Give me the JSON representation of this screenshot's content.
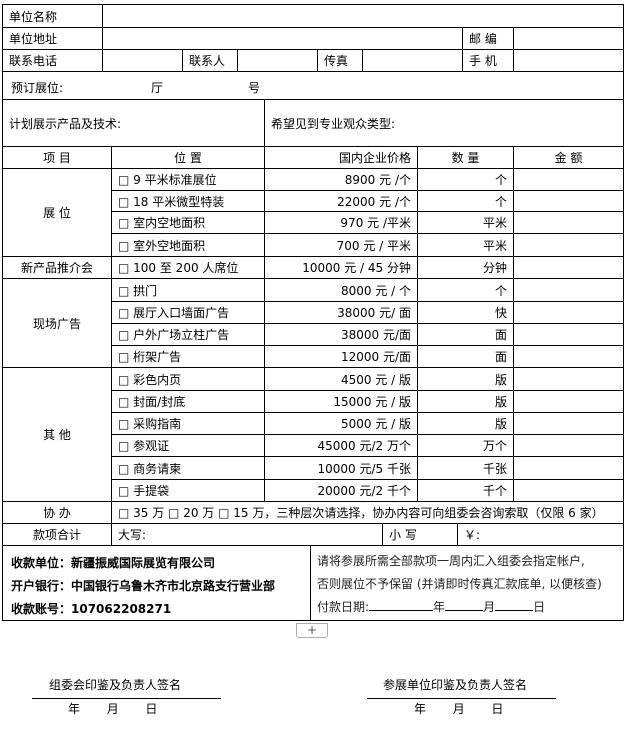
{
  "top": {
    "unit_name": "单位名称",
    "unit_address": "单位地址",
    "postcode": "邮 编",
    "phone": "联系电话",
    "contact": "联系人",
    "fax": "传真",
    "mobile": "手 机",
    "booth": "预订展位:",
    "hall": "厅",
    "number": "号",
    "products": "计划展示产品及技术:",
    "audience": "希望见到专业观众类型:"
  },
  "header": {
    "item": "项 目",
    "position": "位 置",
    "price": "国内企业价格",
    "quantity": "数 量",
    "amount": "金 额"
  },
  "groups": {
    "booth": "展 位",
    "launch": "新产品推介会",
    "ads": "现场广告",
    "other": "其 他",
    "sponsor": "协 办",
    "total": "款项合计"
  },
  "rows": [
    {
      "position": "□  9 平米标准展位",
      "price": "8900 元 /个",
      "unit": "个"
    },
    {
      "position": "□  18 平米微型特装",
      "price": "22000 元 /个",
      "unit": "个"
    },
    {
      "position": "□  室内空地面积",
      "price": "970 元 /平米",
      "unit": "平米"
    },
    {
      "position": "□  室外空地面积",
      "price": "700 元 / 平米",
      "unit": "平米"
    },
    {
      "position": "□ 100 至 200 人席位",
      "price": "10000 元 / 45 分钟",
      "unit": "分钟"
    },
    {
      "position": "□  拱门",
      "price": "8000 元 / 个",
      "unit": "个"
    },
    {
      "position": "□  展厅入口墙面广告",
      "price": "38000 元/ 面",
      "unit": "快"
    },
    {
      "position": "□  户外广场立柱广告",
      "price": "38000 元/面",
      "unit": "面"
    },
    {
      "position": "□  桁架广告",
      "price": "12000 元/面",
      "unit": "面"
    },
    {
      "position": "□  彩色内页",
      "price": "4500 元 / 版",
      "unit": "版"
    },
    {
      "position": "□  封面/封底",
      "price": "15000 元 / 版",
      "unit": "版"
    },
    {
      "position": "□  采购指南",
      "price": "5000 元 / 版",
      "unit": "版"
    },
    {
      "position": "□  参观证",
      "price": "45000 元/2 万个",
      "unit": "万个"
    },
    {
      "position": "□  商务请柬",
      "price": "10000 元/5 千张",
      "unit": "千张"
    },
    {
      "position": "□  手提袋",
      "price": "20000 元/2 千个",
      "unit": "千个"
    }
  ],
  "sponsor_text": "□ 35 万   □ 20 万   □ 15 万，三种层次请选择，协办内容可向组委会咨询索取（仅限 6 家）",
  "total": {
    "capital": "大写:",
    "small": "小 写",
    "yen": "￥:"
  },
  "payment": {
    "payee": "收款单位：新疆振威国际展览有限公司",
    "bank": "开户银行：中国银行乌鲁木齐市北京路支行营业部",
    "account": "收款账号：107062208271"
  },
  "note": {
    "line1": "请将参展所需全部款项一周内汇入组委会指定帐户,",
    "line2": "否则展位不予保留 (并请即时传真汇款底单, 以便核查)",
    "date_label": "付款日期:",
    "year": "年",
    "month": "月",
    "day": "日"
  },
  "add_button": "+",
  "signatures": {
    "left": "组委会印鉴及负责人签名",
    "right": "参展单位印鉴及负责人签名",
    "date": "年       月       日"
  }
}
